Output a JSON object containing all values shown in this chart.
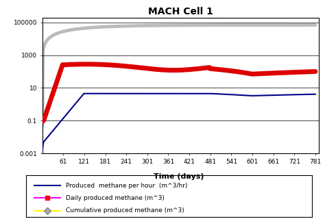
{
  "title": "MACH Cell 1",
  "xlabel": "Time (days)",
  "xlim": [
    1,
    790
  ],
  "ylim_log": [
    -3,
    5
  ],
  "xticks": [
    61,
    121,
    181,
    241,
    301,
    361,
    421,
    481,
    541,
    601,
    661,
    721,
    781
  ],
  "yticks": [
    0.001,
    0.1,
    10,
    1000,
    100000
  ],
  "ytick_labels": [
    "0.001",
    "0.1",
    "10",
    "1000",
    "100000"
  ],
  "line1_color": "#000088",
  "line2_color": "#DD0000",
  "line3_color": "#BBBBBB",
  "legend_line1_color": "#000088",
  "legend_line2_color": "#FF00FF",
  "legend_line3_color": "#FFFF00",
  "legend_marker2_color": "#FF0000",
  "legend_marker3_color": "#AAAAAA",
  "legend_labels": [
    "Produced  methane per hour  (m^3/hr)",
    "Daily produced methane (m^3)",
    "Cumulative produced methane (m^3)"
  ],
  "background_color": "#FFFFFF",
  "title_fontsize": 10,
  "xlabel_fontsize": 8,
  "tick_fontsize": 6.5
}
